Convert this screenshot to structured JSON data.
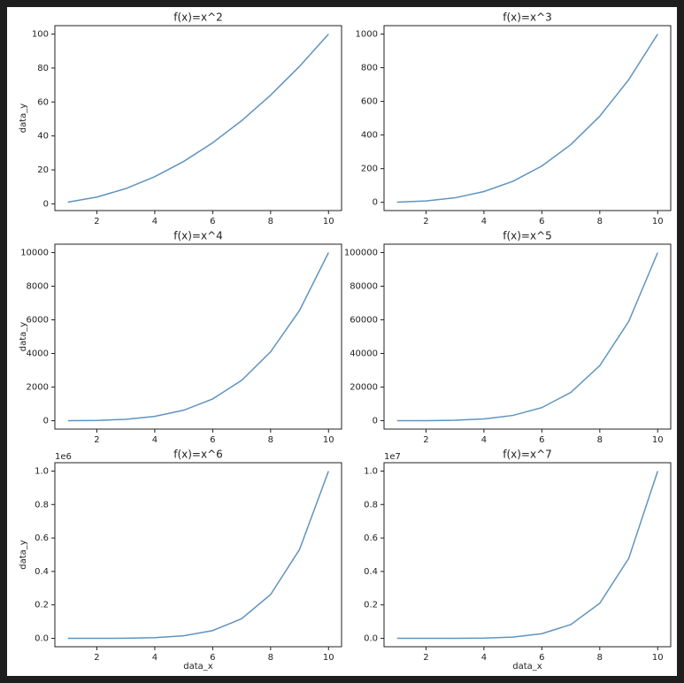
{
  "chart_data": [
    {
      "type": "line",
      "title": "f(x)=x^2",
      "ylabel": "data_y",
      "color": "#5f94c0",
      "x": [
        1,
        2,
        3,
        4,
        5,
        6,
        7,
        8,
        9,
        10
      ],
      "values": [
        1,
        4,
        9,
        16,
        25,
        36,
        49,
        64,
        81,
        100
      ],
      "xlim": [
        0.55,
        10.45
      ],
      "ylim": [
        -3.95,
        104.95
      ],
      "xticks": [
        2,
        4,
        6,
        8,
        10
      ],
      "yticks": [
        0,
        20,
        40,
        60,
        80,
        100
      ]
    },
    {
      "type": "line",
      "title": "f(x)=x^3",
      "color": "#5f94c0",
      "x": [
        1,
        2,
        3,
        4,
        5,
        6,
        7,
        8,
        9,
        10
      ],
      "values": [
        1,
        8,
        27,
        64,
        125,
        216,
        343,
        512,
        729,
        1000
      ],
      "xlim": [
        0.55,
        10.45
      ],
      "ylim": [
        -48.95,
        1049.95
      ],
      "xticks": [
        2,
        4,
        6,
        8,
        10
      ],
      "yticks": [
        0,
        200,
        400,
        600,
        800,
        1000
      ]
    },
    {
      "type": "line",
      "title": "f(x)=x^4",
      "ylabel": "data_y",
      "color": "#5f94c0",
      "x": [
        1,
        2,
        3,
        4,
        5,
        6,
        7,
        8,
        9,
        10
      ],
      "values": [
        1,
        16,
        81,
        256,
        625,
        1296,
        2401,
        4096,
        6561,
        10000
      ],
      "xlim": [
        0.55,
        10.45
      ],
      "ylim": [
        -498.95,
        10499.95
      ],
      "xticks": [
        2,
        4,
        6,
        8,
        10
      ],
      "yticks": [
        0,
        2000,
        4000,
        6000,
        8000,
        10000
      ]
    },
    {
      "type": "line",
      "title": "f(x)=x^5",
      "color": "#5f94c0",
      "x": [
        1,
        2,
        3,
        4,
        5,
        6,
        7,
        8,
        9,
        10
      ],
      "values": [
        1,
        32,
        243,
        1024,
        3125,
        7776,
        16807,
        32768,
        59049,
        100000
      ],
      "xlim": [
        0.55,
        10.45
      ],
      "ylim": [
        -4998.95,
        104999.95
      ],
      "xticks": [
        2,
        4,
        6,
        8,
        10
      ],
      "yticks": [
        0,
        20000,
        40000,
        60000,
        80000,
        100000
      ]
    },
    {
      "type": "line",
      "title": "f(x)=x^6",
      "ylabel": "data_y",
      "xlabel": "data_x",
      "offset_label": "1e6",
      "color": "#5f94c0",
      "x": [
        1,
        2,
        3,
        4,
        5,
        6,
        7,
        8,
        9,
        10
      ],
      "values": [
        1e-06,
        6.4e-05,
        0.000729,
        0.004096,
        0.015625,
        0.046656,
        0.117649,
        0.262144,
        0.531441,
        1.0
      ],
      "xlim": [
        0.55,
        10.45
      ],
      "ylim": [
        -0.05,
        1.05
      ],
      "xticks": [
        2,
        4,
        6,
        8,
        10
      ],
      "yticks": [
        {
          "value": 0,
          "label": "0.0"
        },
        0.2,
        0.4,
        0.6,
        0.8,
        {
          "value": 1,
          "label": "1.0"
        }
      ]
    },
    {
      "type": "line",
      "title": "f(x)=x^7",
      "xlabel": "data_x",
      "offset_label": "1e7",
      "color": "#5f94c0",
      "x": [
        1,
        2,
        3,
        4,
        5,
        6,
        7,
        8,
        9,
        10
      ],
      "values": [
        1e-07,
        1.28e-05,
        0.0002187,
        0.0016384,
        0.0078125,
        0.0279936,
        0.0823543,
        0.2097152,
        0.4782969,
        1.0
      ],
      "xlim": [
        0.55,
        10.45
      ],
      "ylim": [
        -0.05,
        1.05
      ],
      "xticks": [
        2,
        4,
        6,
        8,
        10
      ],
      "yticks": [
        {
          "value": 0,
          "label": "0.0"
        },
        0.2,
        0.4,
        0.6,
        0.8,
        {
          "value": 1,
          "label": "1.0"
        }
      ]
    }
  ]
}
